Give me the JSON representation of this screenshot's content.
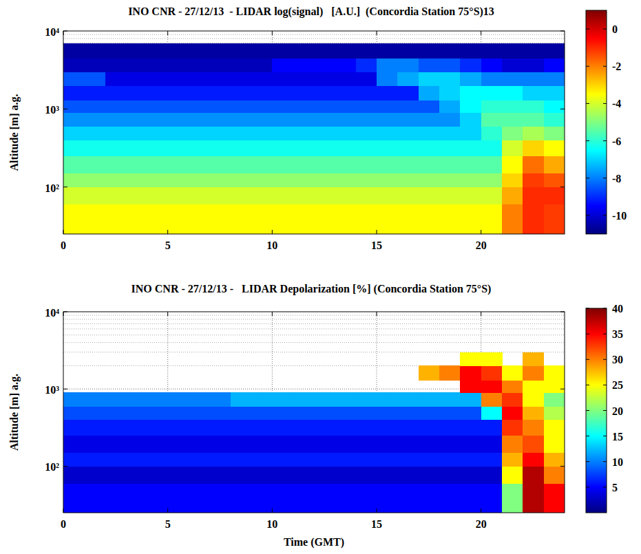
{
  "chart_data": [
    {
      "type": "heatmap",
      "title": "INO CNR - 27/12/13  - LIDAR log(signal)   [A.U.]  (Concordia Station 75°S)13",
      "y_label": "Altitude [m] a.g.",
      "x_edges": [
        0,
        2,
        4,
        6,
        8,
        10,
        12,
        14,
        15,
        16,
        17,
        18,
        19,
        20,
        21,
        22,
        23,
        24
      ],
      "y_edges": [
        25,
        60,
        100,
        150,
        250,
        400,
        600,
        900,
        1300,
        2000,
        3000,
        4500,
        7000,
        10000
      ],
      "values": [
        [
          -3.5,
          -3.5,
          -3.5,
          -3.5,
          -3.5,
          -3.5,
          -3.5,
          -3.5,
          -3.5,
          -3.5,
          -3.5,
          -3.5,
          -3.5,
          -3.5,
          -2,
          -1,
          -1.2
        ],
        [
          -4,
          -4,
          -4,
          -4,
          -4,
          -4,
          -4,
          -4,
          -4,
          -4,
          -4,
          -4,
          -4,
          -4,
          -2.5,
          -1,
          -1
        ],
        [
          -4.8,
          -4.8,
          -4.8,
          -4.8,
          -4.8,
          -4.8,
          -4.8,
          -4.8,
          -4.8,
          -4.8,
          -4.8,
          -4.8,
          -4.8,
          -4.8,
          -3,
          -1.2,
          -1.5
        ],
        [
          -5.5,
          -5.5,
          -5.5,
          -5.5,
          -5.5,
          -5.5,
          -5.5,
          -5.5,
          -5.5,
          -5.5,
          -5.5,
          -5.5,
          -5.5,
          -5.5,
          -3.5,
          -1.8,
          -2.5
        ],
        [
          -6.3,
          -6.3,
          -6.3,
          -6.3,
          -6.3,
          -6.3,
          -6.3,
          -6.3,
          -6.3,
          -6.3,
          -6.3,
          -6.3,
          -6.3,
          -6.3,
          -4,
          -3,
          -3.5
        ],
        [
          -7,
          -7,
          -7,
          -7,
          -7,
          -7,
          -7,
          -7,
          -7,
          -7,
          -7,
          -7,
          -7,
          -6,
          -5,
          -4.5,
          -5
        ],
        [
          -7.8,
          -7.8,
          -7.8,
          -7.8,
          -7.8,
          -7.8,
          -7.8,
          -7.8,
          -7.8,
          -7.8,
          -7.8,
          -7.8,
          -7,
          -5.5,
          -5.5,
          -5.5,
          -6
        ],
        [
          -8.5,
          -8.5,
          -8.5,
          -8.5,
          -8.5,
          -8.5,
          -8.5,
          -8.5,
          -8.5,
          -8.5,
          -8.5,
          -7.5,
          -6.5,
          -6,
          -6,
          -6,
          -6.5
        ],
        [
          -9.2,
          -9.2,
          -9.2,
          -9.2,
          -9.2,
          -9.2,
          -9.2,
          -9.2,
          -9.2,
          -9.2,
          -7.5,
          -7,
          -6.5,
          -6.5,
          -6.5,
          -7,
          -7
        ],
        [
          -8.5,
          -9.8,
          -9.8,
          -9.8,
          -9.8,
          -9.8,
          -9.8,
          -9.8,
          -8,
          -7.5,
          -7,
          -7,
          -7.5,
          -8,
          -8,
          -8,
          -8
        ],
        [
          -10.3,
          -10.3,
          -10.3,
          -10.3,
          -10.3,
          -9.5,
          -9.5,
          -9,
          -8,
          -8,
          -8.5,
          -8.5,
          -9,
          -9.5,
          -10,
          -10,
          -9.5
        ],
        [
          -10.6,
          -10.6,
          -10.6,
          -10.6,
          -10.6,
          -10.6,
          -10.6,
          -10.6,
          -10.6,
          -10.6,
          -10.6,
          -10.6,
          -10.6,
          -10.6,
          -10.6,
          -10.6,
          -10.6
        ],
        [
          null,
          null,
          null,
          null,
          null,
          null,
          null,
          null,
          null,
          null,
          null,
          null,
          null,
          null,
          null,
          null,
          null
        ]
      ],
      "xlim": [
        0,
        24
      ],
      "xticks": [
        0,
        5,
        10,
        15,
        20
      ],
      "ylim": [
        25,
        10000
      ],
      "yticks": [
        {
          "value": 100,
          "label": "10²"
        },
        {
          "value": 1000,
          "label": "10³"
        },
        {
          "value": 10000,
          "label": "10⁴"
        }
      ],
      "log": "y",
      "grid": true,
      "zlim": [
        -11,
        1
      ],
      "zticks": [
        -10,
        -8,
        -6,
        -4,
        -2,
        0
      ]
    },
    {
      "type": "heatmap",
      "title": "INO CNR - 27/12/13 -   LIDAR Depolarization [%] (Concordia Station 75°S)",
      "x_label": "Time (GMT)",
      "y_label": "Altitude [m] a.g.",
      "x_edges": [
        0,
        2,
        4,
        6,
        8,
        10,
        12,
        14,
        15,
        16,
        17,
        18,
        19,
        20,
        21,
        22,
        23,
        24
      ],
      "y_edges": [
        25,
        60,
        100,
        150,
        250,
        400,
        600,
        900,
        1300,
        2000,
        3000,
        4500,
        7000,
        10000
      ],
      "values": [
        [
          5,
          5,
          5,
          5,
          5,
          5,
          5,
          5,
          5,
          5,
          5,
          5,
          5,
          5,
          20,
          38,
          35
        ],
        [
          3,
          3,
          3,
          3,
          3,
          3,
          3,
          3,
          3,
          3,
          3,
          3,
          3,
          3,
          25,
          38,
          30
        ],
        [
          6,
          6,
          6,
          6,
          6,
          6,
          6,
          6,
          6,
          6,
          6,
          6,
          6,
          6,
          28,
          35,
          28
        ],
        [
          4,
          4,
          4,
          4,
          4,
          4,
          4,
          4,
          4,
          4,
          4,
          4,
          4,
          4,
          30,
          32,
          25
        ],
        [
          6,
          6,
          6,
          6,
          6,
          6,
          6,
          6,
          6,
          6,
          6,
          6,
          6,
          6,
          33,
          30,
          25
        ],
        [
          8,
          8,
          8,
          8,
          8,
          8,
          8,
          8,
          8,
          8,
          8,
          8,
          8,
          15,
          35,
          28,
          22
        ],
        [
          10,
          10,
          10,
          10,
          12,
          12,
          12,
          12,
          12,
          12,
          12,
          12,
          12,
          30,
          33,
          25,
          20
        ],
        [
          null,
          null,
          null,
          null,
          null,
          null,
          null,
          null,
          null,
          null,
          null,
          null,
          35,
          35,
          30,
          25,
          25
        ],
        [
          null,
          null,
          null,
          null,
          null,
          null,
          null,
          null,
          null,
          null,
          28,
          30,
          35,
          33,
          25,
          30,
          25
        ],
        [
          null,
          null,
          null,
          null,
          null,
          null,
          null,
          null,
          null,
          null,
          null,
          null,
          25,
          25,
          null,
          28,
          null
        ],
        [
          null,
          null,
          null,
          null,
          null,
          null,
          null,
          null,
          null,
          null,
          null,
          null,
          null,
          null,
          null,
          null,
          null
        ],
        [
          null,
          null,
          null,
          null,
          null,
          null,
          null,
          null,
          null,
          null,
          null,
          null,
          null,
          null,
          null,
          null,
          null
        ],
        [
          null,
          null,
          null,
          null,
          null,
          null,
          null,
          null,
          null,
          null,
          null,
          null,
          null,
          null,
          null,
          null,
          null
        ]
      ],
      "xlim": [
        0,
        24
      ],
      "xticks": [
        0,
        5,
        10,
        15,
        20
      ],
      "ylim": [
        25,
        10000
      ],
      "yticks": [
        {
          "value": 100,
          "label": "10²"
        },
        {
          "value": 1000,
          "label": "10³"
        },
        {
          "value": 10000,
          "label": "10⁴"
        }
      ],
      "log": "y",
      "grid": true,
      "zlim": [
        0,
        40
      ],
      "zticks": [
        5,
        10,
        15,
        20,
        25,
        30,
        35,
        40
      ]
    }
  ]
}
